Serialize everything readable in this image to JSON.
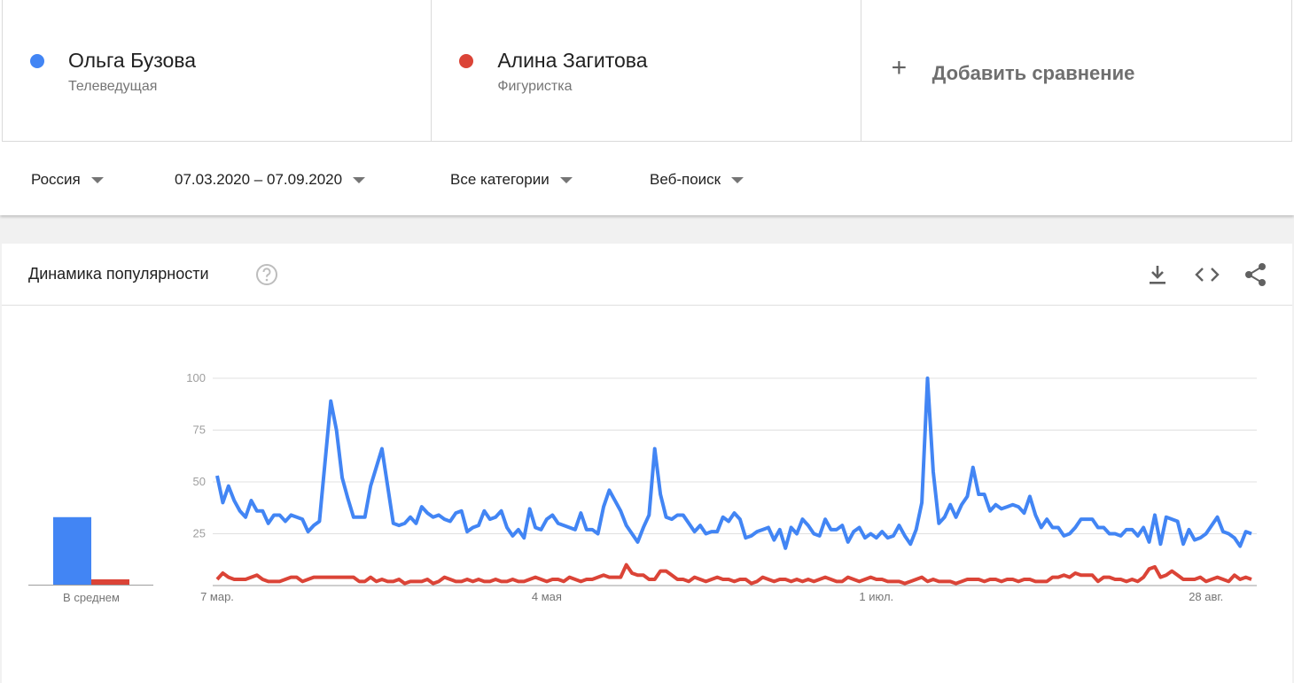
{
  "filters": [
    "Россия",
    "07.03.2020 – 07.09.2020",
    "Все категории",
    "Веб-поиск"
  ],
  "add_comparison": "Добавить сравнение",
  "panel_title": "Динамика популярности",
  "chart_data": [
    {
      "type": "bar",
      "categories": [
        "В среднем"
      ],
      "series": [
        {
          "color": "#4285f4",
          "values": [
            33
          ]
        },
        {
          "color": "#db4437",
          "values": [
            3
          ]
        }
      ]
    },
    {
      "type": "line",
      "ylim": [
        0,
        100
      ],
      "yticks": [
        25,
        50,
        75,
        100
      ],
      "grid": true,
      "categories": [
        "7 мар.",
        null,
        null,
        null,
        null,
        null,
        null,
        null,
        null,
        null,
        null,
        null,
        null,
        null,
        null,
        null,
        null,
        null,
        null,
        null,
        null,
        null,
        null,
        null,
        null,
        null,
        null,
        null,
        null,
        null,
        null,
        null,
        null,
        null,
        null,
        null,
        null,
        null,
        null,
        null,
        null,
        null,
        null,
        null,
        null,
        null,
        null,
        null,
        null,
        null,
        null,
        null,
        null,
        null,
        null,
        null,
        null,
        null,
        "4 мая",
        null,
        null,
        null,
        null,
        null,
        null,
        null,
        null,
        null,
        null,
        null,
        null,
        null,
        null,
        null,
        null,
        null,
        null,
        null,
        null,
        null,
        null,
        null,
        null,
        null,
        null,
        null,
        null,
        null,
        null,
        null,
        null,
        null,
        null,
        null,
        null,
        null,
        null,
        null,
        null,
        null,
        null,
        null,
        null,
        null,
        null,
        null,
        null,
        null,
        null,
        null,
        null,
        null,
        null,
        null,
        null,
        null,
        "1 июл.",
        null,
        null,
        null,
        null,
        null,
        null,
        null,
        null,
        null,
        null,
        null,
        null,
        null,
        null,
        null,
        null,
        null,
        null,
        null,
        null,
        null,
        null,
        null,
        null,
        null,
        null,
        null,
        null,
        null,
        null,
        null,
        null,
        null,
        null,
        null,
        null,
        null,
        null,
        null,
        null,
        null,
        null,
        null,
        null,
        null,
        null,
        null,
        null,
        null,
        null,
        null,
        null,
        null,
        null,
        null,
        null,
        null,
        "28 авг.",
        null,
        null,
        null,
        null,
        null,
        null,
        null,
        null
      ],
      "series": [
        {
          "name": "Ольга Бузова",
          "subtitle": "Телеведущая",
          "color": "#4285f4",
          "values": [
            53,
            40,
            48,
            41,
            36,
            33,
            41,
            36,
            36,
            30,
            34,
            34,
            31,
            34,
            33,
            32,
            26,
            29,
            31,
            60,
            89,
            75,
            52,
            42,
            33,
            33,
            33,
            48,
            57,
            66,
            48,
            30,
            29,
            30,
            33,
            30,
            38,
            35,
            33,
            34,
            32,
            31,
            35,
            36,
            26,
            28,
            29,
            36,
            32,
            33,
            36,
            28,
            24,
            27,
            23,
            37,
            28,
            27,
            32,
            34,
            30,
            29,
            28,
            27,
            35,
            27,
            27,
            25,
            38,
            46,
            41,
            36,
            29,
            25,
            21,
            28,
            34,
            66,
            44,
            33,
            32,
            34,
            34,
            30,
            26,
            29,
            25,
            26,
            26,
            33,
            31,
            35,
            32,
            23,
            24,
            26,
            27,
            28,
            22,
            27,
            18,
            28,
            25,
            32,
            29,
            25,
            24,
            32,
            27,
            27,
            29,
            21,
            26,
            28,
            23,
            25,
            23,
            26,
            23,
            24,
            29,
            24,
            20,
            27,
            40,
            100,
            55,
            30,
            33,
            39,
            33,
            39,
            43,
            57,
            44,
            44,
            36,
            39,
            37,
            38,
            39,
            38,
            35,
            43,
            34,
            28,
            32,
            28,
            28,
            24,
            25,
            28,
            32,
            32,
            32,
            28,
            28,
            25,
            25,
            24,
            27,
            27,
            24,
            28,
            21,
            34,
            20,
            33,
            32,
            31,
            20,
            27,
            22,
            23,
            25,
            29,
            33,
            26,
            25,
            23,
            19,
            26,
            25
          ]
        },
        {
          "name": "Алина Загитова",
          "subtitle": "Фигуристка",
          "color": "#db4437",
          "values": [
            3,
            6,
            4,
            3,
            3,
            3,
            4,
            5,
            3,
            2,
            2,
            2,
            3,
            4,
            4,
            2,
            3,
            4,
            4,
            4,
            4,
            4,
            4,
            4,
            4,
            2,
            2,
            4,
            2,
            3,
            2,
            2,
            3,
            1,
            2,
            2,
            2,
            3,
            1,
            2,
            4,
            3,
            2,
            2,
            3,
            2,
            3,
            2,
            2,
            3,
            2,
            2,
            3,
            2,
            2,
            3,
            4,
            3,
            2,
            3,
            3,
            2,
            4,
            3,
            2,
            3,
            3,
            4,
            5,
            4,
            4,
            4,
            10,
            6,
            5,
            5,
            3,
            3,
            7,
            7,
            5,
            3,
            3,
            2,
            4,
            3,
            2,
            3,
            4,
            3,
            3,
            2,
            3,
            3,
            1,
            2,
            4,
            3,
            2,
            3,
            3,
            2,
            3,
            2,
            3,
            2,
            3,
            4,
            3,
            2,
            2,
            4,
            3,
            2,
            3,
            4,
            3,
            3,
            2,
            2,
            2,
            1,
            2,
            3,
            4,
            2,
            3,
            2,
            2,
            2,
            1,
            2,
            3,
            3,
            3,
            2,
            3,
            3,
            2,
            3,
            3,
            2,
            3,
            3,
            2,
            2,
            2,
            4,
            4,
            5,
            4,
            6,
            5,
            5,
            5,
            2,
            4,
            4,
            3,
            3,
            2,
            3,
            2,
            4,
            8,
            9,
            4,
            5,
            7,
            5,
            3,
            3,
            3,
            4,
            2,
            3,
            4,
            3,
            2,
            5,
            3,
            4,
            3
          ]
        }
      ]
    }
  ]
}
